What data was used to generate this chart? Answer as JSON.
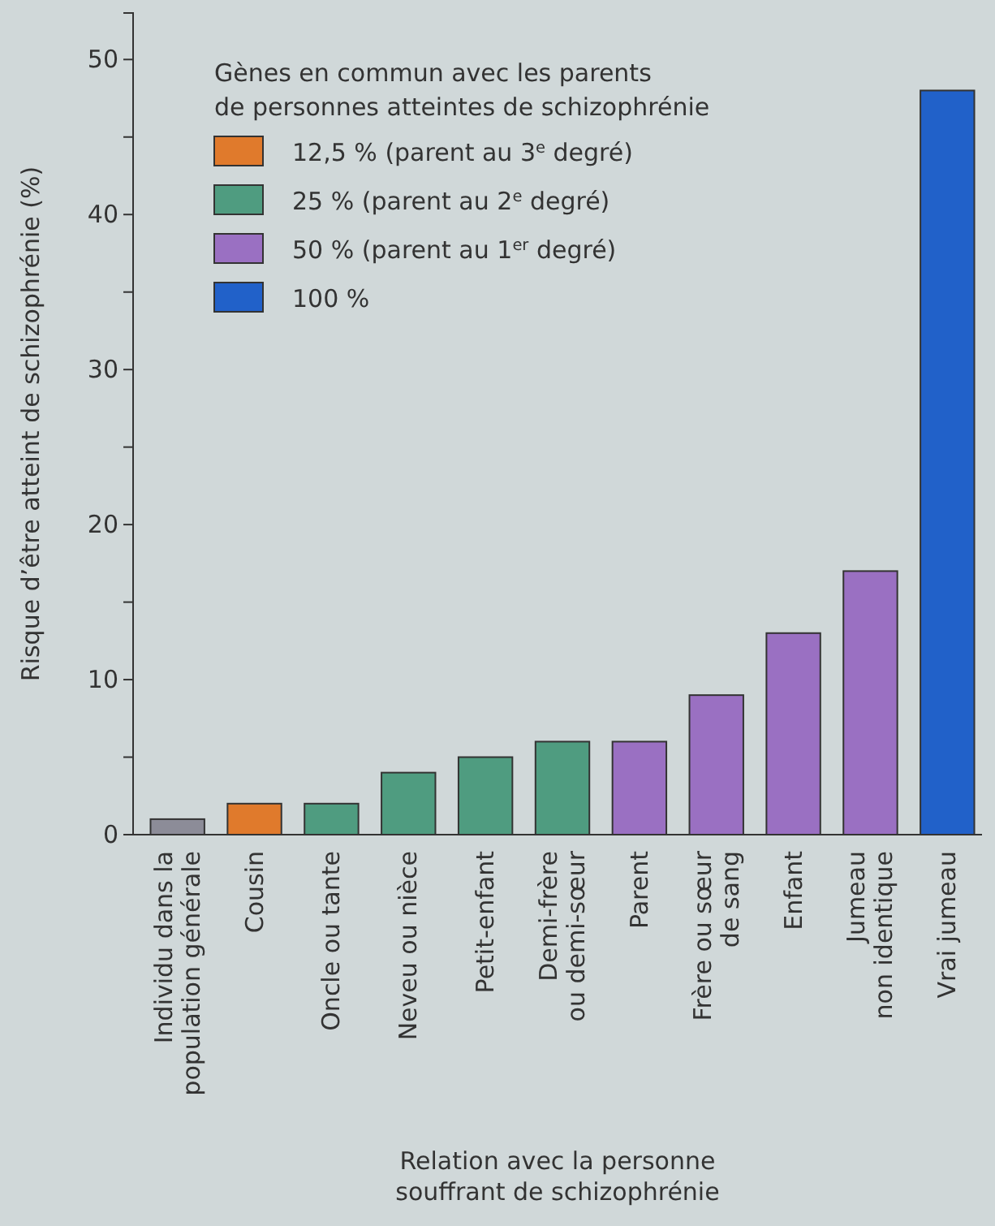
{
  "chart_data": {
    "type": "bar",
    "xlabel": "Relation avec la personne\nsouffrant de schizophrénie",
    "ylabel": "Risque d’être atteint de schizophrénie (%)",
    "legend_title": "Gènes en commun avec les parents\nde personnes atteintes de schizophrénie",
    "legend": "top left",
    "categories": [
      "Individu dans la\npopulation générale",
      "Cousin",
      "Oncle ou tante",
      "Neveu ou nièce",
      "Petit-enfant",
      "Demi-frère\nou demi-sœur",
      "Parent",
      "Frère ou sœur\nde sang",
      "Enfant",
      "Jumeau\nnon identique",
      "Vrai jumeau"
    ],
    "series": [
      {
        "color": "#8c8c98",
        "values": [
          1,
          null,
          null,
          null,
          null,
          null,
          null,
          null,
          null,
          null,
          null
        ]
      },
      {
        "name": "12,5 % (parent au 3$^{e}$ degré)",
        "color": "#e07a2c",
        "values": [
          null,
          2,
          null,
          null,
          null,
          null,
          null,
          null,
          null,
          null,
          null
        ]
      },
      {
        "name": "25 % (parent au 2$^{e}$ degré)",
        "color": "#4f9c80",
        "values": [
          null,
          null,
          2,
          4,
          5,
          6,
          null,
          null,
          null,
          null,
          null
        ]
      },
      {
        "name": "50 % (parent au 1$^{er}$ degré)",
        "color": "#9a70c2",
        "values": [
          null,
          null,
          null,
          null,
          null,
          null,
          6,
          9,
          13,
          17,
          null
        ]
      },
      {
        "name": "100 %",
        "color": "#2161c9",
        "values": [
          null,
          null,
          null,
          null,
          null,
          null,
          null,
          null,
          null,
          null,
          48
        ]
      }
    ],
    "ylim": [
      0,
      53
    ],
    "yticks": [
      0,
      {
        "value": 5,
        "label": null
      },
      10,
      {
        "value": 15,
        "label": null
      },
      20,
      {
        "value": 25,
        "label": null
      },
      30,
      {
        "value": 35,
        "label": null
      },
      40,
      {
        "value": 45,
        "label": null
      },
      50
    ]
  }
}
